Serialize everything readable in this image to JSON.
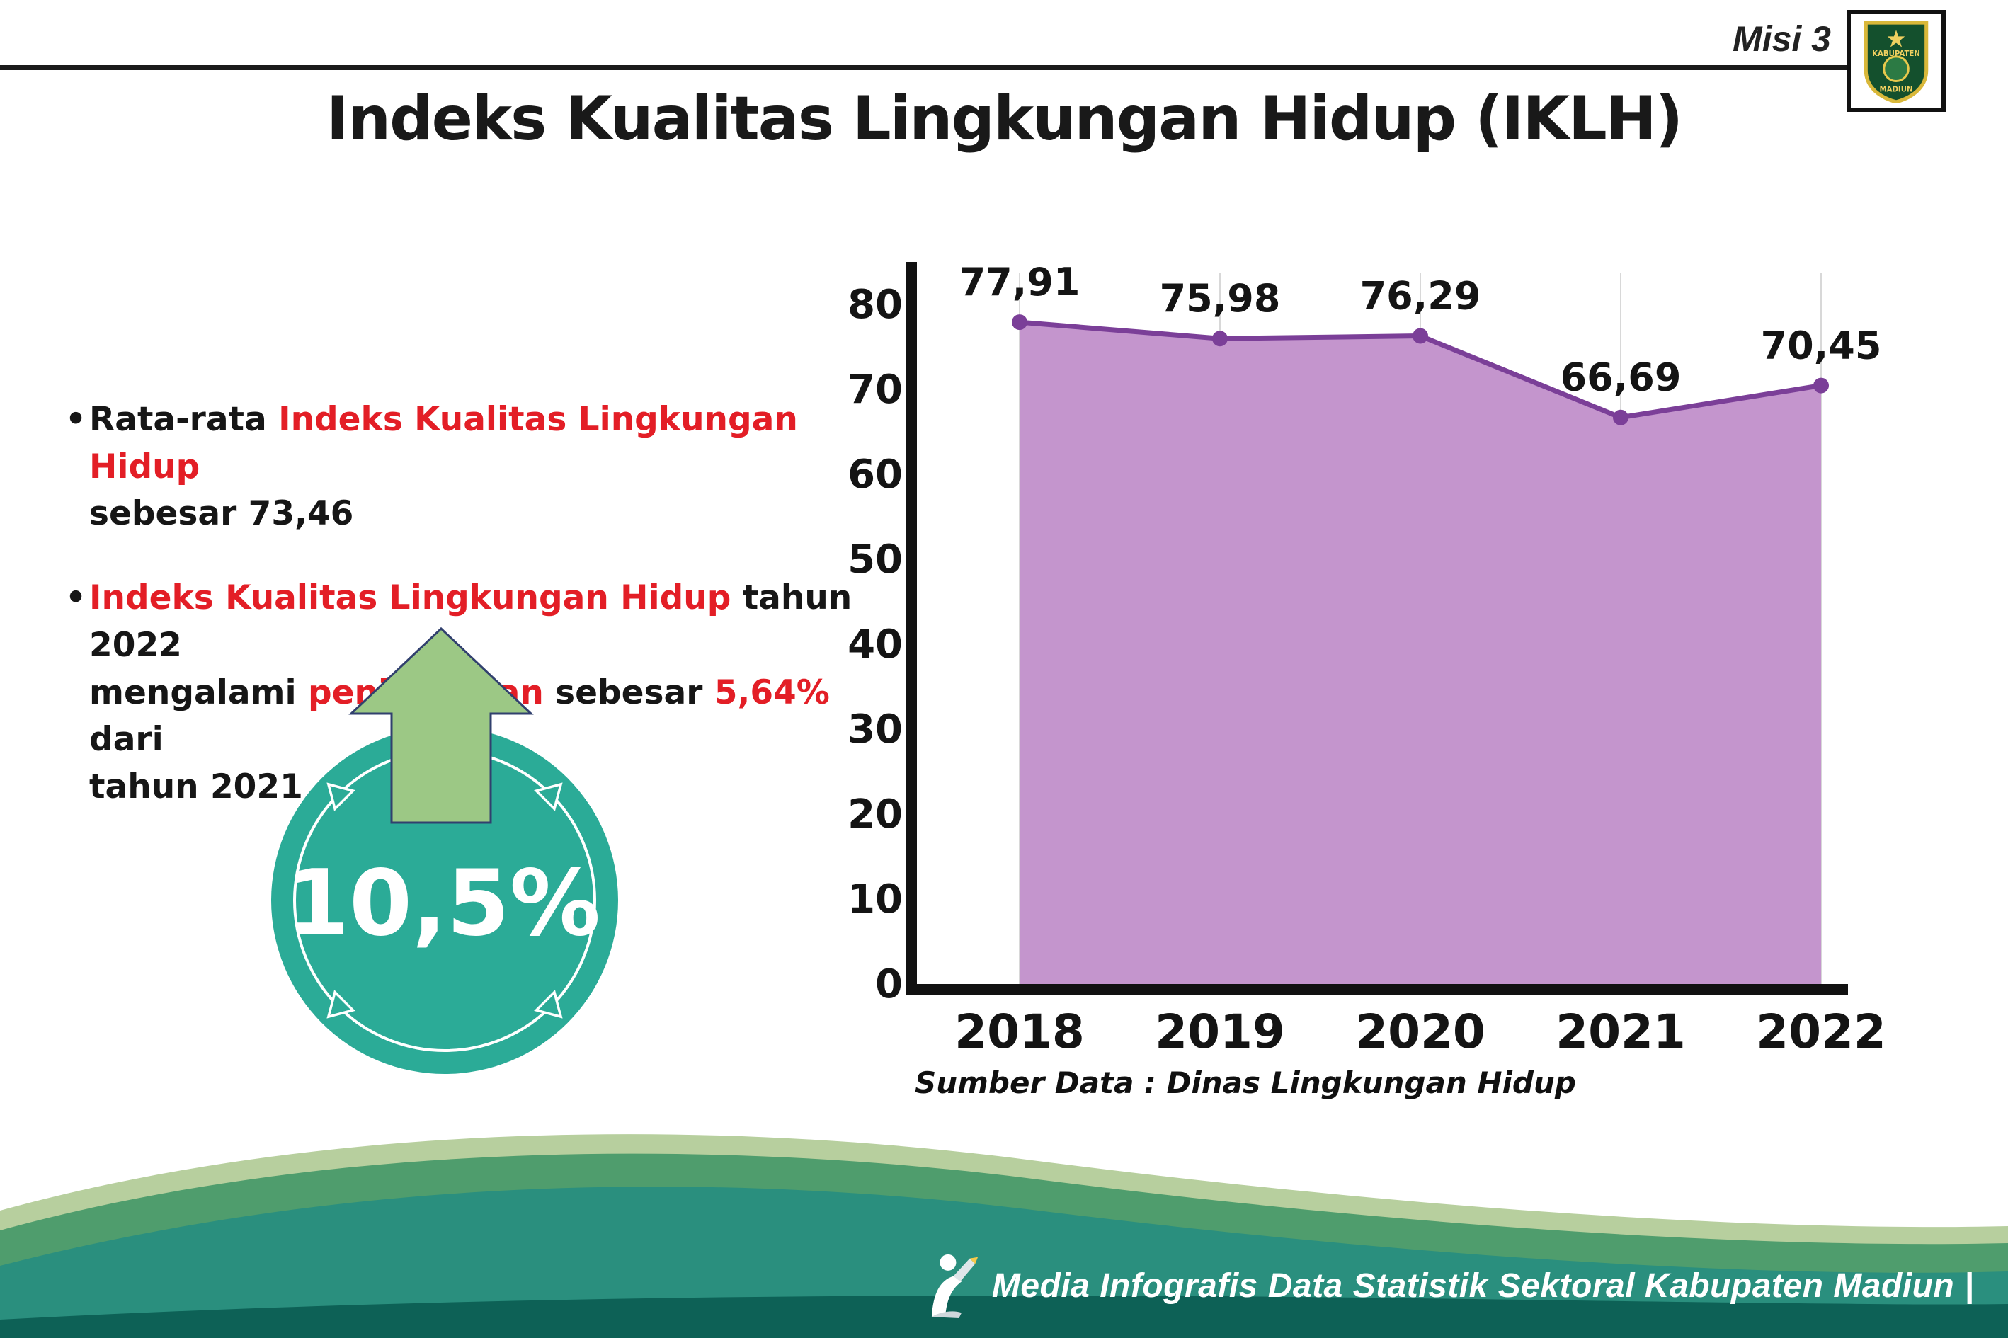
{
  "header": {
    "misi_label": "Misi 3",
    "logo": {
      "top_text": "KABUPATEN",
      "bottom_text": "MADIUN"
    }
  },
  "title": "Indeks Kualitas Lingkungan Hidup (IKLH)",
  "bullets": [
    {
      "lines": [
        {
          "segs": [
            {
              "t": "Rata-rata ",
              "c": "k"
            },
            {
              "t": "Indeks Kualitas Lingkungan Hidup",
              "c": "r"
            }
          ]
        },
        {
          "segs": [
            {
              "t": "sebesar 73,46",
              "c": "k"
            }
          ]
        }
      ]
    },
    {
      "lines": [
        {
          "segs": [
            {
              "t": "Indeks Kualitas Lingkungan Hidup",
              "c": "r"
            },
            {
              "t": " tahun 2022",
              "c": "k"
            }
          ]
        },
        {
          "segs": [
            {
              "t": "mengalami ",
              "c": "k"
            },
            {
              "t": "peningkatan",
              "c": "r"
            },
            {
              "t": " sebesar ",
              "c": "k"
            },
            {
              "t": "5,64%",
              "c": "r"
            },
            {
              "t": " dari",
              "c": "k"
            }
          ]
        },
        {
          "segs": [
            {
              "t": "tahun 2021",
              "c": "k"
            }
          ]
        }
      ]
    }
  ],
  "badge": {
    "value": "10,5%"
  },
  "chart_data": {
    "type": "area",
    "title": "",
    "categories": [
      "2018",
      "2019",
      "2020",
      "2021",
      "2022"
    ],
    "values": [
      77.91,
      75.98,
      76.29,
      66.69,
      70.45
    ],
    "value_labels": [
      "77,91",
      "75,98",
      "76,29",
      "66,69",
      "70,45"
    ],
    "ylim": [
      0,
      80
    ],
    "yticks": [
      0,
      10,
      20,
      30,
      40,
      50,
      60,
      70,
      80
    ],
    "grid": "vertical",
    "legend": "none",
    "line_color": "#7b3f98",
    "fill_color": "#c495cd",
    "source": "Sumber Data : Dinas Lingkungan Hidup"
  },
  "footer": {
    "text": "Media Infografis Data Statistik Sektoral Kabupaten Madiun |"
  },
  "colors": {
    "red": "#e31e26",
    "teal": "#2bab97",
    "arrow_green": "#9cc885",
    "line_purple": "#7b3f98",
    "fill_purple": "#c495cd"
  }
}
